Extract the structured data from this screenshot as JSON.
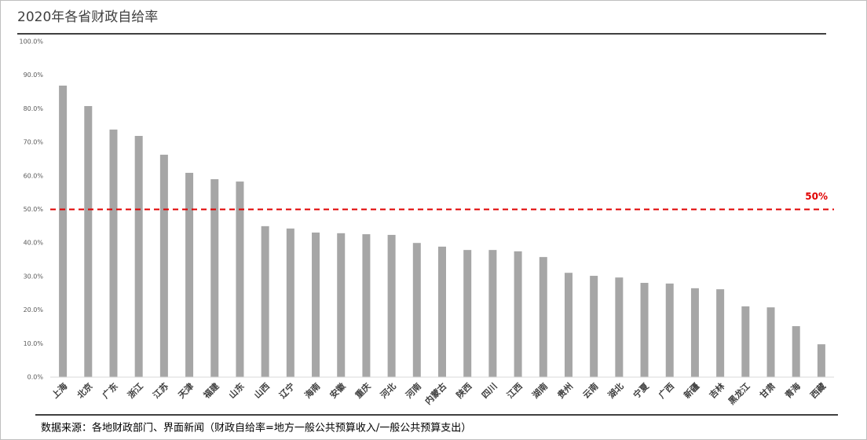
{
  "chart_data": {
    "type": "bar",
    "title": "2020年各省财政自给率",
    "categories": [
      "上海",
      "北京",
      "广东",
      "浙江",
      "江苏",
      "天津",
      "福建",
      "山东",
      "山西",
      "辽宁",
      "海南",
      "安徽",
      "重庆",
      "河北",
      "河南",
      "内蒙古",
      "陕西",
      "四川",
      "江西",
      "湖南",
      "贵州",
      "云南",
      "湖北",
      "宁夏",
      "广西",
      "新疆",
      "吉林",
      "黑龙江",
      "甘肃",
      "青海",
      "西藏"
    ],
    "values": [
      86.9,
      80.8,
      73.8,
      71.9,
      66.3,
      60.9,
      59.0,
      58.3,
      45.0,
      44.3,
      43.1,
      42.9,
      42.6,
      42.4,
      40.0,
      38.9,
      37.9,
      37.9,
      37.5,
      35.8,
      31.1,
      30.2,
      29.7,
      28.1,
      27.9,
      26.5,
      26.2,
      21.1,
      20.8,
      15.2,
      9.8
    ],
    "color": "#a6a6a6",
    "ylim": [
      0,
      100
    ],
    "yticks": [
      {
        "value": 0,
        "label": "0.0%"
      },
      {
        "value": 10,
        "label": "10.0%"
      },
      {
        "value": 20,
        "label": "20.0%"
      },
      {
        "value": 30,
        "label": "30.0%"
      },
      {
        "value": 40,
        "label": "40.0%"
      },
      {
        "value": 50,
        "label": "50.0%"
      },
      {
        "value": 60,
        "label": "60.0%"
      },
      {
        "value": 70,
        "label": "70.0%"
      },
      {
        "value": 80,
        "label": "80.0%"
      },
      {
        "value": 90,
        "label": "90.0%"
      },
      {
        "value": 100,
        "label": "100.0%"
      }
    ],
    "grid": false,
    "reference_line": {
      "value": 50,
      "label": "50%",
      "color": "#e00000"
    },
    "source": "数据来源：各地财政部门、界面新闻（财政自给率=地方一般公共预算收入/一般公共预算支出）"
  }
}
